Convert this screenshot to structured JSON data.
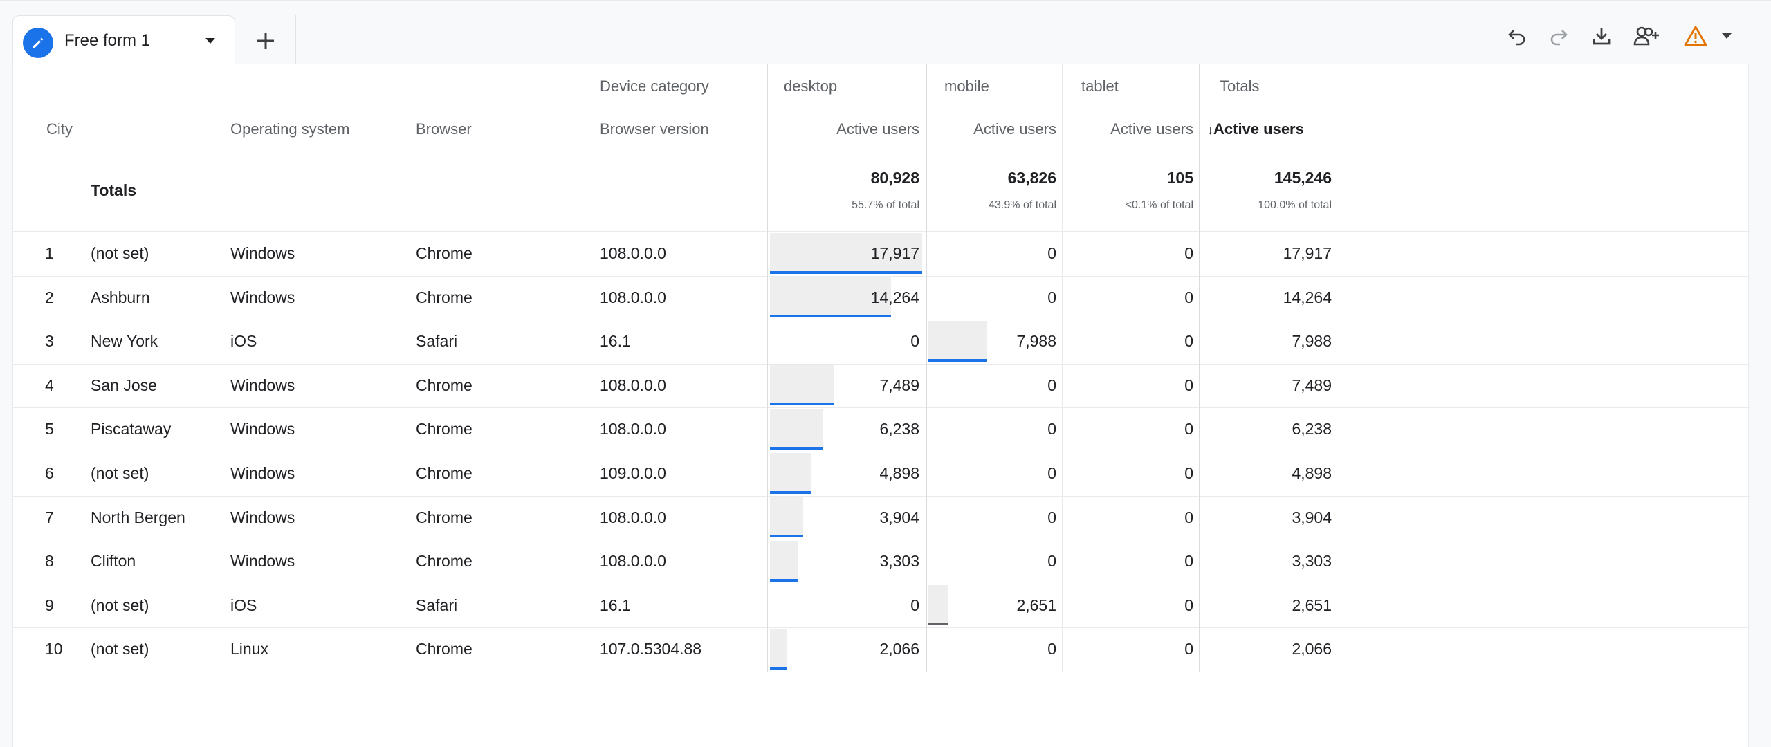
{
  "tabs": {
    "active_label": "Free form 1",
    "icons": {
      "active_tab": "pencil-icon",
      "dropdown": "caret-down-icon",
      "add": "plus-icon"
    }
  },
  "toolbar": {
    "icons": [
      "undo-icon",
      "redo-icon",
      "download-icon",
      "share-user-icon",
      "warning-icon",
      "caret-down-icon"
    ],
    "colors": {
      "warning": "#e37400",
      "accent": "#1a73e8"
    }
  },
  "table": {
    "pivot_label": "Device category",
    "pivot_columns": [
      "desktop",
      "mobile",
      "tablet",
      "Totals"
    ],
    "dimension_headers": [
      "City",
      "Operating system",
      "Browser",
      "Browser version"
    ],
    "metric_header": "Active users",
    "sorted_metric_header": "Active users",
    "totals": {
      "label": "Totals",
      "values": [
        "80,928",
        "63,826",
        "105",
        "145,246"
      ],
      "percents": [
        "55.7% of total",
        "43.9% of total",
        "<0.1% of total",
        "100.0% of total"
      ]
    },
    "rows": [
      {
        "rank": "1",
        "city": "(not set)",
        "os": "Windows",
        "browser": "Chrome",
        "version": "108.0.0.0",
        "desktop": "17,917",
        "mobile": "0",
        "tablet": "0",
        "total": "17,917"
      },
      {
        "rank": "2",
        "city": "Ashburn",
        "os": "Windows",
        "browser": "Chrome",
        "version": "108.0.0.0",
        "desktop": "14,264",
        "mobile": "0",
        "tablet": "0",
        "total": "14,264"
      },
      {
        "rank": "3",
        "city": "New York",
        "os": "iOS",
        "browser": "Safari",
        "version": "16.1",
        "desktop": "0",
        "mobile": "7,988",
        "tablet": "0",
        "total": "7,988"
      },
      {
        "rank": "4",
        "city": "San Jose",
        "os": "Windows",
        "browser": "Chrome",
        "version": "108.0.0.0",
        "desktop": "7,489",
        "mobile": "0",
        "tablet": "0",
        "total": "7,489"
      },
      {
        "rank": "5",
        "city": "Piscataway",
        "os": "Windows",
        "browser": "Chrome",
        "version": "108.0.0.0",
        "desktop": "6,238",
        "mobile": "0",
        "tablet": "0",
        "total": "6,238"
      },
      {
        "rank": "6",
        "city": "(not set)",
        "os": "Windows",
        "browser": "Chrome",
        "version": "109.0.0.0",
        "desktop": "4,898",
        "mobile": "0",
        "tablet": "0",
        "total": "4,898"
      },
      {
        "rank": "7",
        "city": "North Bergen",
        "os": "Windows",
        "browser": "Chrome",
        "version": "108.0.0.0",
        "desktop": "3,904",
        "mobile": "0",
        "tablet": "0",
        "total": "3,904"
      },
      {
        "rank": "8",
        "city": "Clifton",
        "os": "Windows",
        "browser": "Chrome",
        "version": "108.0.0.0",
        "desktop": "3,303",
        "mobile": "0",
        "tablet": "0",
        "total": "3,303"
      },
      {
        "rank": "9",
        "city": "(not set)",
        "os": "iOS",
        "browser": "Safari",
        "version": "16.1",
        "desktop": "0",
        "mobile": "2,651",
        "tablet": "0",
        "total": "2,651"
      },
      {
        "rank": "10",
        "city": "(not set)",
        "os": "Linux",
        "browser": "Chrome",
        "version": "107.0.5304.88",
        "desktop": "2,066",
        "mobile": "0",
        "tablet": "0",
        "total": "2,066"
      }
    ],
    "desktop_bar_fractions": [
      1.0,
      0.796,
      0,
      0.418,
      0.348,
      0.273,
      0.218,
      0.184,
      0,
      0.115
    ],
    "mobile_bar_fractions": [
      0,
      0,
      1.0,
      0,
      0,
      0,
      0,
      0,
      0.332,
      0
    ]
  }
}
